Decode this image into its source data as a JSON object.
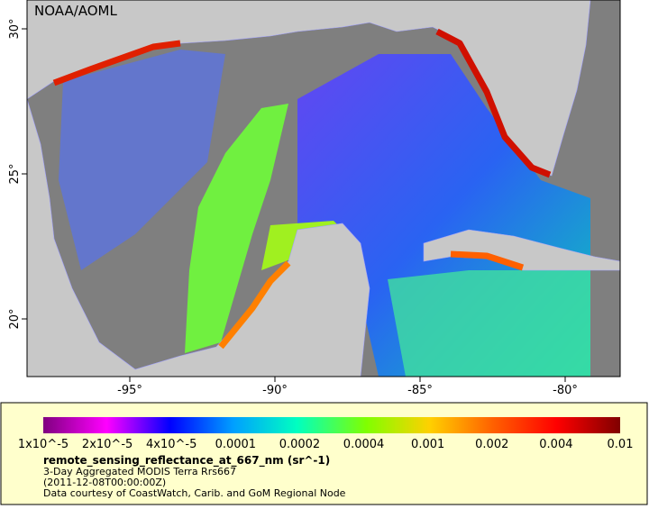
{
  "header": {
    "watermark": "NOAA/AOML"
  },
  "map": {
    "lat_ticks": [
      {
        "value": 30,
        "label": "30°"
      },
      {
        "value": 25,
        "label": "25°"
      },
      {
        "value": 20,
        "label": "20°"
      }
    ],
    "lon_ticks": [
      {
        "value": -95,
        "label": "-95°"
      },
      {
        "value": -90,
        "label": "-90°"
      },
      {
        "value": -85,
        "label": "-85°"
      },
      {
        "value": -80,
        "label": "-80°"
      }
    ]
  },
  "legend": {
    "ticks": [
      "1x10^-5",
      "2x10^-5",
      "4x10^-5",
      "0.0001",
      "0.0002",
      "0.0004",
      "0.001",
      "0.002",
      "0.004",
      "0.01"
    ],
    "variable": "remote_sensing_reflectance_at_667_nm (sr^-1)",
    "lines": [
      "3-Day Aggregated MODIS Terra Rrs667",
      "(2011-12-08T00:00:00Z)",
      "Data courtesy of CoastWatch, Carib. and GoM Regional Node"
    ]
  }
}
